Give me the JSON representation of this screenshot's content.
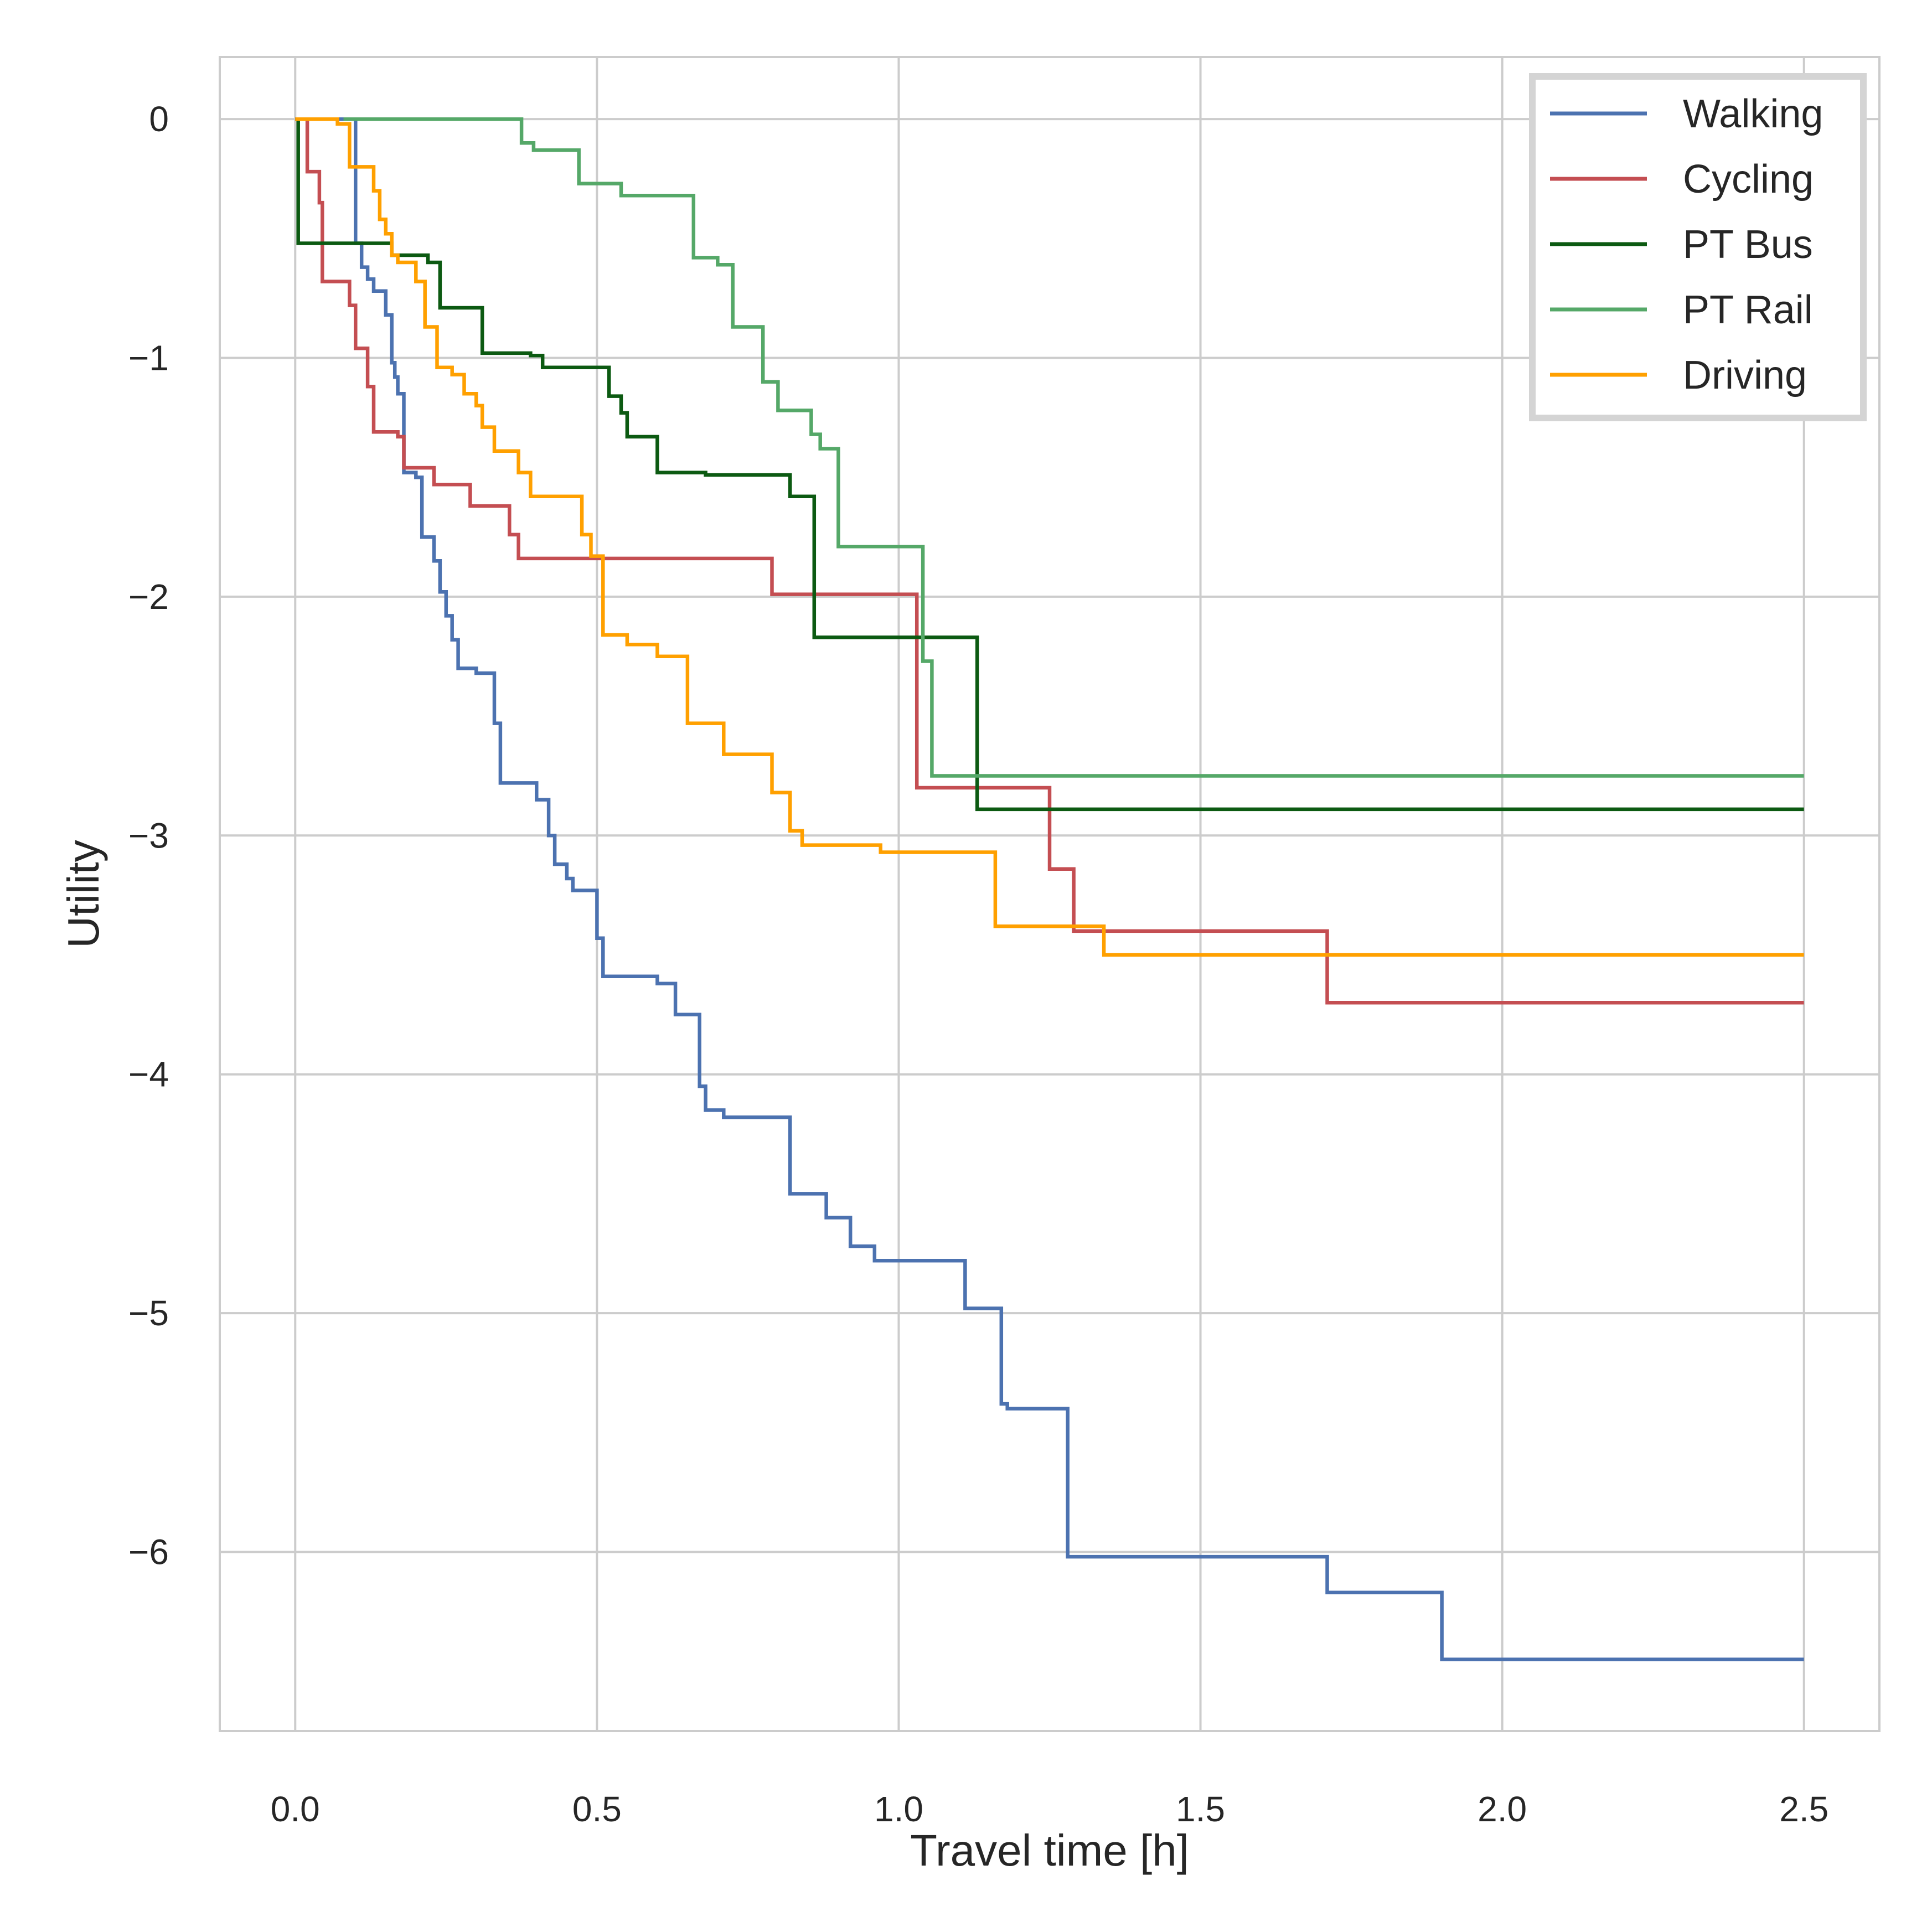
{
  "chart_data": {
    "type": "line",
    "drawstyle": "steps-post",
    "title": "",
    "xlabel": "Travel time [h]",
    "ylabel": "Utility",
    "xlim": [
      -0.125,
      2.625
    ],
    "ylim": [
      -6.75,
      0.26
    ],
    "xticks": [
      0.0,
      0.5,
      1.0,
      1.5,
      2.0,
      2.5
    ],
    "xtick_labels": [
      "0.0",
      "0.5",
      "1.0",
      "1.5",
      "2.0",
      "2.5"
    ],
    "yticks": [
      0,
      -1,
      -2,
      -3,
      -4,
      -5,
      -6
    ],
    "ytick_labels": [
      "0",
      "−1",
      "−2",
      "−3",
      "−4",
      "−5",
      "−6"
    ],
    "grid": true,
    "legend_location": "upper right",
    "series": [
      {
        "name": "Walking",
        "color": "#4c72b0",
        "points": [
          [
            0,
            0
          ],
          [
            0.1,
            -0.52
          ],
          [
            0.11,
            -0.62
          ],
          [
            0.12,
            -0.67
          ],
          [
            0.13,
            -0.72
          ],
          [
            0.15,
            -0.82
          ],
          [
            0.16,
            -1.02
          ],
          [
            0.165,
            -1.08
          ],
          [
            0.17,
            -1.15
          ],
          [
            0.18,
            -1.48
          ],
          [
            0.2,
            -1.5
          ],
          [
            0.21,
            -1.75
          ],
          [
            0.23,
            -1.85
          ],
          [
            0.24,
            -1.98
          ],
          [
            0.25,
            -2.08
          ],
          [
            0.26,
            -2.18
          ],
          [
            0.27,
            -2.3
          ],
          [
            0.3,
            -2.32
          ],
          [
            0.33,
            -2.53
          ],
          [
            0.34,
            -2.78
          ],
          [
            0.4,
            -2.85
          ],
          [
            0.42,
            -3.0
          ],
          [
            0.43,
            -3.12
          ],
          [
            0.45,
            -3.18
          ],
          [
            0.46,
            -3.23
          ],
          [
            0.5,
            -3.43
          ],
          [
            0.51,
            -3.59
          ],
          [
            0.6,
            -3.62
          ],
          [
            0.63,
            -3.75
          ],
          [
            0.67,
            -4.05
          ],
          [
            0.68,
            -4.15
          ],
          [
            0.71,
            -4.18
          ],
          [
            0.82,
            -4.5
          ],
          [
            0.88,
            -4.6
          ],
          [
            0.92,
            -4.72
          ],
          [
            0.96,
            -4.78
          ],
          [
            1.11,
            -4.98
          ],
          [
            1.17,
            -5.38
          ],
          [
            1.18,
            -5.4
          ],
          [
            1.28,
            -6.02
          ],
          [
            1.71,
            -6.17
          ],
          [
            1.9,
            -6.45
          ],
          [
            2.5,
            -6.45
          ]
        ]
      },
      {
        "name": "Cycling",
        "color": "#c44e52",
        "points": [
          [
            0,
            0
          ],
          [
            0.02,
            -0.22
          ],
          [
            0.04,
            -0.35
          ],
          [
            0.045,
            -0.68
          ],
          [
            0.09,
            -0.78
          ],
          [
            0.1,
            -0.96
          ],
          [
            0.12,
            -1.12
          ],
          [
            0.13,
            -1.31
          ],
          [
            0.17,
            -1.33
          ],
          [
            0.18,
            -1.46
          ],
          [
            0.23,
            -1.53
          ],
          [
            0.29,
            -1.62
          ],
          [
            0.355,
            -1.74
          ],
          [
            0.37,
            -1.84
          ],
          [
            0.79,
            -1.99
          ],
          [
            1.03,
            -2.8
          ],
          [
            1.25,
            -3.14
          ],
          [
            1.29,
            -3.4
          ],
          [
            1.71,
            -3.7
          ],
          [
            2.5,
            -3.7
          ]
        ]
      },
      {
        "name": "PT Bus",
        "color": "#0c5a12",
        "points": [
          [
            0,
            0
          ],
          [
            0.005,
            -0.52
          ],
          [
            0.16,
            -0.57
          ],
          [
            0.22,
            -0.6
          ],
          [
            0.24,
            -0.79
          ],
          [
            0.31,
            -0.98
          ],
          [
            0.39,
            -0.99
          ],
          [
            0.41,
            -1.04
          ],
          [
            0.52,
            -1.16
          ],
          [
            0.54,
            -1.23
          ],
          [
            0.55,
            -1.33
          ],
          [
            0.6,
            -1.48
          ],
          [
            0.68,
            -1.49
          ],
          [
            0.82,
            -1.58
          ],
          [
            0.86,
            -2.17
          ],
          [
            1.13,
            -2.89
          ],
          [
            2.5,
            -2.89
          ]
        ]
      },
      {
        "name": "PT Rail",
        "color": "#55a868",
        "points": [
          [
            0.08,
            0
          ],
          [
            0.375,
            -0.1
          ],
          [
            0.395,
            -0.13
          ],
          [
            0.47,
            -0.27
          ],
          [
            0.54,
            -0.32
          ],
          [
            0.66,
            -0.58
          ],
          [
            0.7,
            -0.61
          ],
          [
            0.725,
            -0.87
          ],
          [
            0.775,
            -1.1
          ],
          [
            0.8,
            -1.22
          ],
          [
            0.855,
            -1.32
          ],
          [
            0.87,
            -1.38
          ],
          [
            0.9,
            -1.79
          ],
          [
            1.04,
            -2.27
          ],
          [
            1.055,
            -2.75
          ],
          [
            2.5,
            -2.75
          ]
        ]
      },
      {
        "name": "Driving",
        "color": "#ffa000",
        "points": [
          [
            0,
            0
          ],
          [
            0.07,
            -0.02
          ],
          [
            0.09,
            -0.2
          ],
          [
            0.13,
            -0.3
          ],
          [
            0.14,
            -0.42
          ],
          [
            0.15,
            -0.48
          ],
          [
            0.16,
            -0.57
          ],
          [
            0.17,
            -0.6
          ],
          [
            0.2,
            -0.68
          ],
          [
            0.215,
            -0.87
          ],
          [
            0.235,
            -1.04
          ],
          [
            0.26,
            -1.07
          ],
          [
            0.28,
            -1.15
          ],
          [
            0.3,
            -1.2
          ],
          [
            0.31,
            -1.29
          ],
          [
            0.33,
            -1.39
          ],
          [
            0.37,
            -1.48
          ],
          [
            0.39,
            -1.58
          ],
          [
            0.475,
            -1.74
          ],
          [
            0.49,
            -1.83
          ],
          [
            0.51,
            -2.16
          ],
          [
            0.55,
            -2.2
          ],
          [
            0.6,
            -2.25
          ],
          [
            0.65,
            -2.53
          ],
          [
            0.71,
            -2.66
          ],
          [
            0.79,
            -2.82
          ],
          [
            0.82,
            -2.98
          ],
          [
            0.84,
            -3.04
          ],
          [
            0.97,
            -3.07
          ],
          [
            1.16,
            -3.38
          ],
          [
            1.34,
            -3.5
          ],
          [
            2.5,
            -3.5
          ]
        ]
      }
    ]
  }
}
